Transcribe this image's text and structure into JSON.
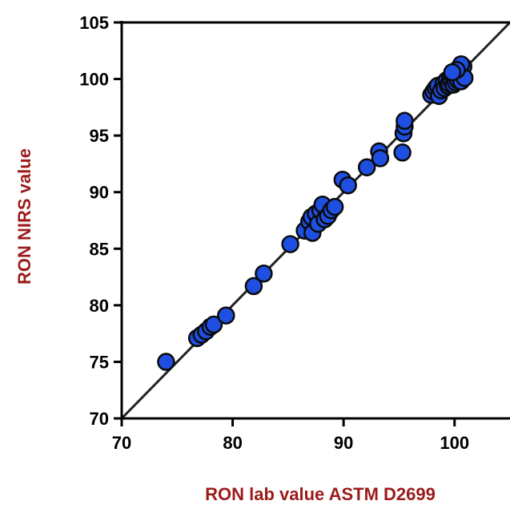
{
  "chart_data": {
    "type": "scatter",
    "title": "",
    "xlabel": "RON lab value ASTM D2699",
    "ylabel": "RON NIRS value",
    "xlim": [
      70,
      105
    ],
    "ylim": [
      70,
      105
    ],
    "xticks": [
      "70",
      "80",
      "90",
      "100"
    ],
    "yticks": [
      "70",
      "75",
      "80",
      "85",
      "90",
      "95",
      "100",
      "105"
    ],
    "grid": false,
    "legend": "none",
    "reference_line": {
      "x": [
        70,
        105
      ],
      "y": [
        70,
        105
      ]
    },
    "colors": {
      "point_fill": "#1f4fe0",
      "point_stroke": "#0a0a0a",
      "axis_title": "#9b1b1b",
      "axis": "#000000",
      "reference_line": "#222222"
    },
    "series": [
      {
        "points": [
          [
            74.0,
            75.0
          ],
          [
            76.8,
            77.1
          ],
          [
            77.2,
            77.4
          ],
          [
            77.6,
            77.7
          ],
          [
            78.0,
            78.1
          ],
          [
            78.3,
            78.3
          ],
          [
            79.4,
            79.1
          ],
          [
            81.9,
            81.7
          ],
          [
            82.8,
            82.8
          ],
          [
            85.2,
            85.4
          ],
          [
            86.5,
            86.6
          ],
          [
            86.9,
            87.4
          ],
          [
            87.1,
            87.8
          ],
          [
            87.2,
            86.4
          ],
          [
            87.5,
            88.1
          ],
          [
            87.7,
            87.2
          ],
          [
            87.9,
            88.4
          ],
          [
            88.1,
            88.9
          ],
          [
            88.3,
            87.6
          ],
          [
            88.6,
            87.9
          ],
          [
            88.9,
            88.4
          ],
          [
            89.2,
            88.7
          ],
          [
            89.9,
            91.1
          ],
          [
            90.4,
            90.6
          ],
          [
            92.1,
            92.2
          ],
          [
            93.2,
            93.6
          ],
          [
            93.3,
            93.0
          ],
          [
            95.3,
            93.5
          ],
          [
            95.4,
            95.2
          ],
          [
            95.5,
            95.8
          ],
          [
            95.5,
            96.3
          ],
          [
            97.9,
            98.6
          ],
          [
            98.1,
            98.9
          ],
          [
            98.3,
            99.2
          ],
          [
            98.5,
            99.4
          ],
          [
            98.6,
            98.5
          ],
          [
            98.8,
            99.0
          ],
          [
            99.0,
            99.6
          ],
          [
            99.1,
            99.2
          ],
          [
            99.3,
            99.9
          ],
          [
            99.4,
            99.4
          ],
          [
            99.5,
            99.6
          ],
          [
            99.6,
            100.1
          ],
          [
            99.7,
            99.8
          ],
          [
            99.8,
            100.4
          ],
          [
            99.9,
            99.5
          ],
          [
            100.0,
            100.0
          ],
          [
            100.1,
            99.7
          ],
          [
            100.2,
            100.3
          ],
          [
            100.3,
            99.9
          ],
          [
            100.4,
            100.6
          ],
          [
            100.5,
            100.2
          ],
          [
            100.6,
            99.8
          ],
          [
            100.7,
            100.5
          ],
          [
            100.8,
            101.1
          ],
          [
            100.9,
            100.1
          ],
          [
            100.6,
            101.3
          ],
          [
            100.2,
            100.8
          ],
          [
            99.8,
            100.6
          ]
        ]
      }
    ]
  }
}
